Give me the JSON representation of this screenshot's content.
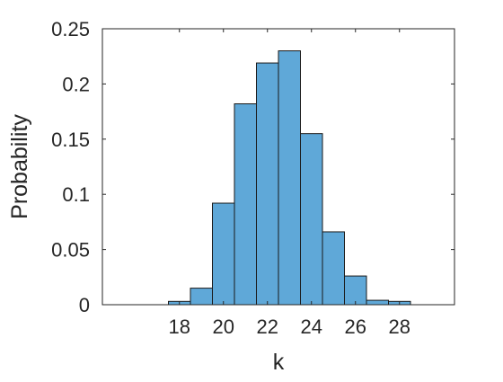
{
  "chart_data": {
    "type": "bar",
    "title": "",
    "xlabel": "k",
    "ylabel": "Probability",
    "bin_width": 1,
    "bin_centers": [
      16,
      17,
      18,
      19,
      20,
      21,
      22,
      23,
      24,
      25,
      26,
      27,
      28
    ],
    "values": [
      0,
      0.0,
      0.003,
      0.015,
      0.092,
      0.182,
      0.219,
      0.23,
      0.155,
      0.066,
      0.026,
      0.004,
      0.003
    ],
    "xlim": [
      14.5,
      30.5
    ],
    "ylim": [
      0,
      0.25
    ],
    "xticks": [
      18,
      20,
      22,
      24,
      26,
      28
    ],
    "yticks": [
      0,
      0.05,
      0.1,
      0.15,
      0.2,
      0.25
    ],
    "xtick_labels": [
      "18",
      "20",
      "22",
      "24",
      "26",
      "28"
    ],
    "ytick_labels": [
      "0",
      "0.05",
      "0.1",
      "0.15",
      "0.2",
      "0.25"
    ],
    "grid": false,
    "colors": {
      "bar_fill": "#5fa8d8",
      "bar_edge": "#1a1a1a",
      "axes": "#262626"
    }
  }
}
